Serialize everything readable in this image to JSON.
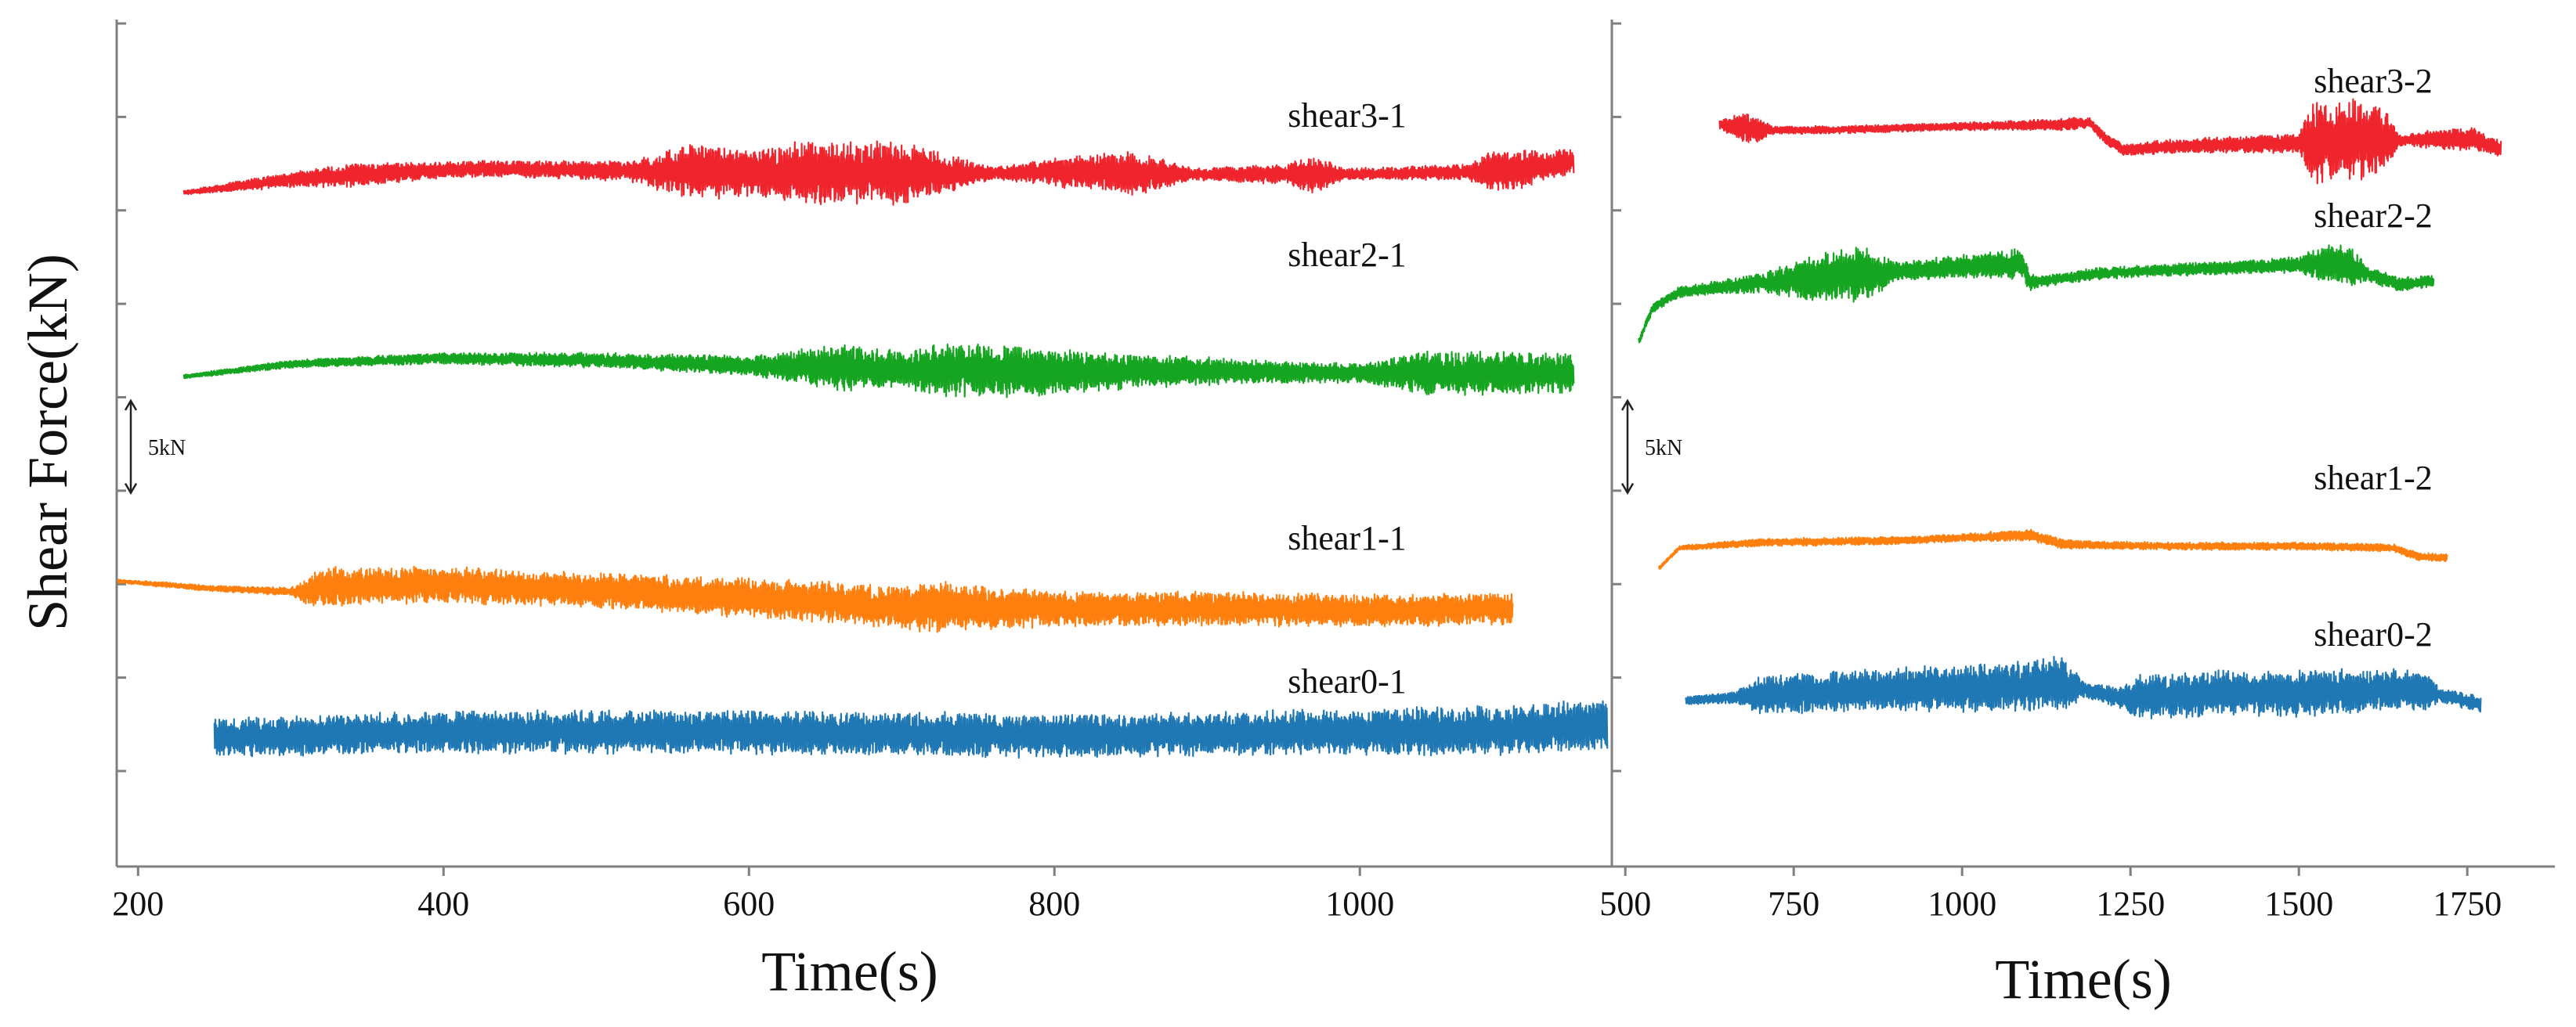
{
  "figure": {
    "ylabel": "Shear Force(kN)"
  },
  "chart_data": [
    {
      "type": "line",
      "panel": "left",
      "xlabel": "Time(s)",
      "ylabel": "Shear Force(kN)",
      "xlim": [
        186,
        1165
      ],
      "x_ticks": [
        200,
        400,
        600,
        800,
        1000
      ],
      "ylim": [
        0,
        46
      ],
      "y_tick_count": 9,
      "scale_bar": {
        "label": "5kN",
        "value": 5
      },
      "series": [
        {
          "name": "shear3-1",
          "color": "#f0242c",
          "x_range": [
            230,
            1140
          ],
          "base": [
            [
              230,
              36.6
            ],
            [
              300,
              37.3
            ],
            [
              350,
              37.6
            ],
            [
              420,
              37.9
            ],
            [
              500,
              37.8
            ],
            [
              600,
              37.7
            ],
            [
              700,
              37.6
            ],
            [
              800,
              37.7
            ],
            [
              900,
              37.6
            ],
            [
              1000,
              37.6
            ],
            [
              1100,
              37.8
            ],
            [
              1140,
              38.3
            ]
          ],
          "noise": [
            [
              230,
              0.1
            ],
            [
              300,
              0.4
            ],
            [
              340,
              0.6
            ],
            [
              400,
              0.4
            ],
            [
              520,
              0.5
            ],
            [
              560,
              1.4
            ],
            [
              600,
              1.2
            ],
            [
              640,
              1.6
            ],
            [
              700,
              1.6
            ],
            [
              730,
              1.0
            ],
            [
              760,
              0.3
            ],
            [
              850,
              1.2
            ],
            [
              890,
              0.3
            ],
            [
              950,
              0.5
            ],
            [
              970,
              1.0
            ],
            [
              990,
              0.3
            ],
            [
              1070,
              0.4
            ],
            [
              1090,
              1.1
            ],
            [
              1140,
              0.6
            ]
          ]
        },
        {
          "name": "shear2-1",
          "color": "#16a520",
          "x_range": [
            230,
            1140
          ],
          "base": [
            [
              230,
              26.6
            ],
            [
              300,
              27.3
            ],
            [
              400,
              27.6
            ],
            [
              500,
              27.5
            ],
            [
              600,
              27.2
            ],
            [
              700,
              27.0
            ],
            [
              800,
              26.9
            ],
            [
              900,
              26.9
            ],
            [
              1000,
              26.8
            ],
            [
              1100,
              26.8
            ],
            [
              1140,
              26.8
            ]
          ],
          "noise": [
            [
              230,
              0.1
            ],
            [
              300,
              0.2
            ],
            [
              420,
              0.3
            ],
            [
              600,
              0.5
            ],
            [
              660,
              1.2
            ],
            [
              700,
              0.9
            ],
            [
              720,
              1.4
            ],
            [
              780,
              1.3
            ],
            [
              850,
              0.9
            ],
            [
              930,
              0.6
            ],
            [
              1000,
              0.5
            ],
            [
              1050,
              1.2
            ],
            [
              1140,
              1.0
            ]
          ]
        },
        {
          "name": "shear1-1",
          "color": "#ff7f0e",
          "x_range": [
            187,
            1100
          ],
          "base": [
            [
              187,
              15.5
            ],
            [
              250,
              15.1
            ],
            [
              310,
              14.9
            ],
            [
              320,
              15.2
            ],
            [
              400,
              15.3
            ],
            [
              500,
              15.0
            ],
            [
              600,
              14.6
            ],
            [
              700,
              14.1
            ],
            [
              800,
              14.0
            ],
            [
              900,
              14.0
            ],
            [
              1000,
              13.9
            ],
            [
              1100,
              14.0
            ]
          ],
          "noise": [
            [
              187,
              0.1
            ],
            [
              300,
              0.2
            ],
            [
              320,
              1.0
            ],
            [
              400,
              0.9
            ],
            [
              500,
              0.9
            ],
            [
              700,
              1.1
            ],
            [
              720,
              1.3
            ],
            [
              800,
              0.9
            ],
            [
              1100,
              0.8
            ]
          ]
        },
        {
          "name": "shear0-1",
          "color": "#1f77b4",
          "x_range": [
            250,
            1162
          ],
          "base": [
            [
              250,
              7.0
            ],
            [
              400,
              7.3
            ],
            [
              600,
              7.3
            ],
            [
              800,
              7.1
            ],
            [
              1000,
              7.3
            ],
            [
              1100,
              7.4
            ],
            [
              1162,
              7.7
            ]
          ],
          "noise": [
            [
              250,
              1.0
            ],
            [
              500,
              1.1
            ],
            [
              700,
              1.1
            ],
            [
              900,
              1.1
            ],
            [
              1000,
              1.2
            ],
            [
              1162,
              1.3
            ]
          ]
        }
      ]
    },
    {
      "type": "line",
      "panel": "right",
      "xlabel": "Time(s)",
      "xlim": [
        480,
        1880
      ],
      "x_ticks": [
        500,
        750,
        1000,
        1250,
        1500,
        1750
      ],
      "ylim": [
        0,
        46
      ],
      "y_tick_count": 9,
      "scale_bar": {
        "label": "5kN",
        "value": 5
      },
      "series": [
        {
          "name": "shear3-2",
          "color": "#f0242c",
          "x_range": [
            640,
            1800
          ],
          "base": [
            [
              640,
              40.3
            ],
            [
              700,
              40.0
            ],
            [
              800,
              40.0
            ],
            [
              1000,
              40.2
            ],
            [
              1150,
              40.3
            ],
            [
              1190,
              40.4
            ],
            [
              1210,
              39.6
            ],
            [
              1240,
              38.9
            ],
            [
              1300,
              39.1
            ],
            [
              1400,
              39.2
            ],
            [
              1500,
              39.3
            ],
            [
              1600,
              39.4
            ],
            [
              1700,
              39.5
            ],
            [
              1760,
              39.5
            ],
            [
              1800,
              39.0
            ]
          ],
          "noise": [
            [
              640,
              0.2
            ],
            [
              680,
              0.9
            ],
            [
              720,
              0.2
            ],
            [
              1000,
              0.2
            ],
            [
              1150,
              0.3
            ],
            [
              1250,
              0.3
            ],
            [
              1500,
              0.5
            ],
            [
              1520,
              2.2
            ],
            [
              1620,
              2.0
            ],
            [
              1650,
              0.3
            ],
            [
              1740,
              0.6
            ],
            [
              1800,
              0.4
            ]
          ]
        },
        {
          "name": "shear2-2",
          "color": "#16a520",
          "x_range": [
            520,
            1700
          ],
          "base": [
            [
              520,
              28.5
            ],
            [
              540,
              30.3
            ],
            [
              580,
              31.2
            ],
            [
              700,
              31.7
            ],
            [
              800,
              32.0
            ],
            [
              900,
              32.3
            ],
            [
              1000,
              32.6
            ],
            [
              1090,
              32.7
            ],
            [
              1100,
              31.7
            ],
            [
              1200,
              32.2
            ],
            [
              1300,
              32.4
            ],
            [
              1400,
              32.5
            ],
            [
              1500,
              32.7
            ],
            [
              1560,
              32.8
            ],
            [
              1600,
              32.2
            ],
            [
              1650,
              31.6
            ],
            [
              1700,
              31.8
            ]
          ],
          "noise": [
            [
              520,
              0.2
            ],
            [
              600,
              0.3
            ],
            [
              700,
              0.5
            ],
            [
              780,
              1.2
            ],
            [
              860,
              1.4
            ],
            [
              900,
              0.5
            ],
            [
              1000,
              0.6
            ],
            [
              1090,
              0.8
            ],
            [
              1110,
              0.3
            ],
            [
              1300,
              0.3
            ],
            [
              1500,
              0.4
            ],
            [
              1540,
              1.0
            ],
            [
              1580,
              1.0
            ],
            [
              1600,
              0.4
            ],
            [
              1700,
              0.3
            ]
          ]
        },
        {
          "name": "shear1-2",
          "color": "#ff7f0e",
          "x_range": [
            550,
            1720
          ],
          "base": [
            [
              550,
              16.2
            ],
            [
              580,
              17.3
            ],
            [
              700,
              17.6
            ],
            [
              900,
              17.7
            ],
            [
              1100,
              18.0
            ],
            [
              1150,
              17.5
            ],
            [
              1300,
              17.4
            ],
            [
              1500,
              17.4
            ],
            [
              1640,
              17.3
            ],
            [
              1680,
              16.8
            ],
            [
              1720,
              16.8
            ]
          ],
          "noise": [
            [
              550,
              0.1
            ],
            [
              700,
              0.2
            ],
            [
              1000,
              0.2
            ],
            [
              1100,
              0.3
            ],
            [
              1200,
              0.2
            ],
            [
              1500,
              0.2
            ],
            [
              1720,
              0.2
            ]
          ]
        },
        {
          "name": "shear0-2",
          "color": "#1f77b4",
          "x_range": [
            590,
            1770
          ],
          "base": [
            [
              590,
              9.0
            ],
            [
              700,
              9.3
            ],
            [
              900,
              9.6
            ],
            [
              1100,
              9.8
            ],
            [
              1150,
              9.9
            ],
            [
              1180,
              9.6
            ],
            [
              1230,
              9.2
            ],
            [
              1300,
              9.3
            ],
            [
              1400,
              9.4
            ],
            [
              1500,
              9.4
            ],
            [
              1650,
              9.6
            ],
            [
              1700,
              9.4
            ],
            [
              1770,
              8.8
            ]
          ],
          "noise": [
            [
              590,
              0.2
            ],
            [
              660,
              0.3
            ],
            [
              700,
              1.0
            ],
            [
              900,
              1.1
            ],
            [
              1100,
              1.3
            ],
            [
              1150,
              1.4
            ],
            [
              1180,
              0.4
            ],
            [
              1230,
              0.5
            ],
            [
              1260,
              1.1
            ],
            [
              1500,
              1.2
            ],
            [
              1690,
              1.0
            ],
            [
              1710,
              0.4
            ],
            [
              1770,
              0.4
            ]
          ]
        }
      ]
    }
  ]
}
